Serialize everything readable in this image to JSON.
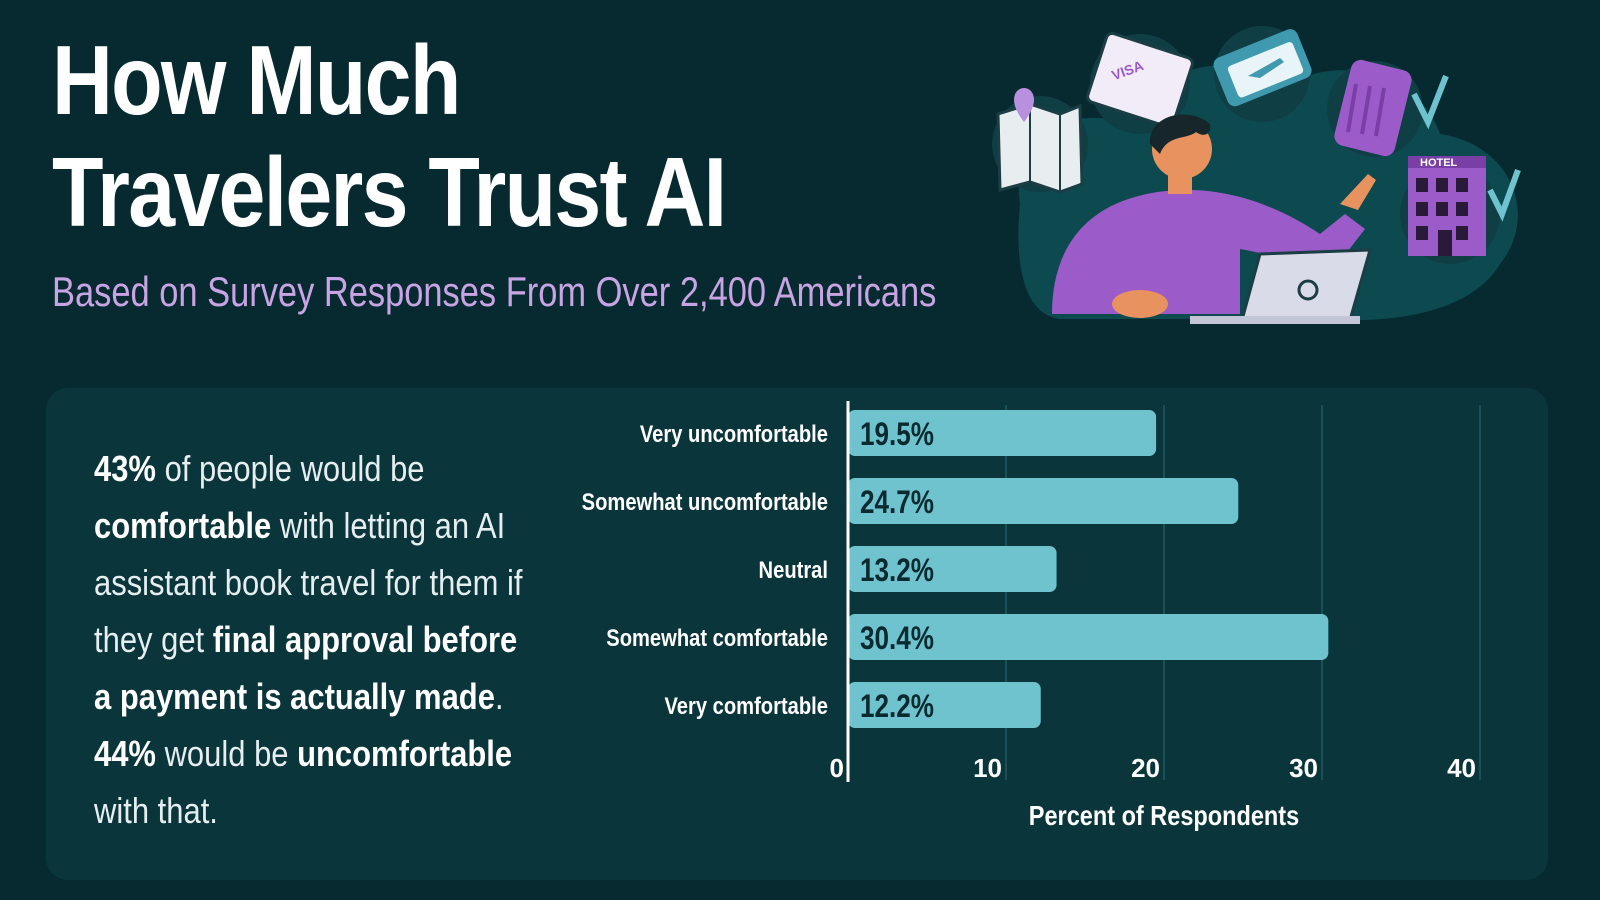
{
  "header": {
    "title_line1": "How Much",
    "title_line2": "Travelers Trust AI",
    "subtitle": "Based on Survey Responses From Over 2,400 Americans"
  },
  "illustration": {
    "visa_label": "VISA",
    "hotel_label": "HOTEL",
    "icons": [
      "map-icon",
      "passport-icon",
      "plane-ticket-icon",
      "suitcase-icon",
      "hotel-icon",
      "checkmark-icon",
      "laptop-icon"
    ]
  },
  "callout": {
    "s1": "43%",
    "s2": " of people would be ",
    "s3": "comfortable",
    "s4": " with letting an AI assistant book travel for them if they get ",
    "s5": "final approval before a payment is actually made",
    "s6": ". ",
    "s7": "44%",
    "s8": " would be ",
    "s9": "uncomfortable",
    "s10": " with that."
  },
  "colors": {
    "background": "#062a30",
    "panel": "#0a353b",
    "bar": "#6ec3cf",
    "subtitle": "#c9a4e4",
    "accent_purple": "#9b5bc9"
  },
  "chart_data": {
    "type": "bar",
    "orientation": "horizontal",
    "categories": [
      "Very uncomfortable",
      "Somewhat uncomfortable",
      "Neutral",
      "Somewhat comfortable",
      "Very comfortable"
    ],
    "values": [
      19.5,
      24.7,
      13.2,
      30.4,
      12.2
    ],
    "value_labels": [
      "19.5%",
      "24.7%",
      "13.2%",
      "30.4%",
      "12.2%"
    ],
    "xlabel": "Percent of Respondents",
    "ylabel": "",
    "xlim": [
      0,
      40
    ],
    "xticks": [
      0,
      10,
      20,
      30,
      40
    ],
    "grid": true
  }
}
